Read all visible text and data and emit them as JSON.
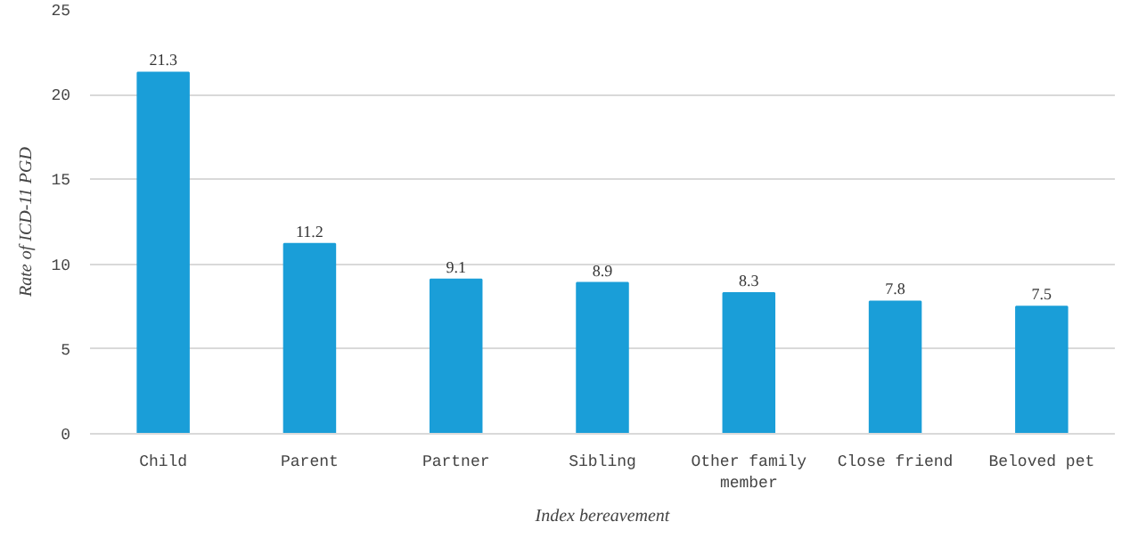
{
  "chart_data": {
    "type": "bar",
    "xlabel": "Index bereavement",
    "ylabel": "Rate of ICD-11 PGD",
    "categories": [
      "Child",
      "Parent",
      "Partner",
      "Sibling",
      "Other family member",
      "Close friend",
      "Beloved pet"
    ],
    "values": [
      21.3,
      11.2,
      9.1,
      8.9,
      8.3,
      7.8,
      7.5
    ],
    "color": "#1a9ed8",
    "ylim": [
      0,
      25
    ],
    "yticks": [
      0,
      5,
      10,
      15,
      20,
      25
    ],
    "grid": "y",
    "data_labels": true
  }
}
